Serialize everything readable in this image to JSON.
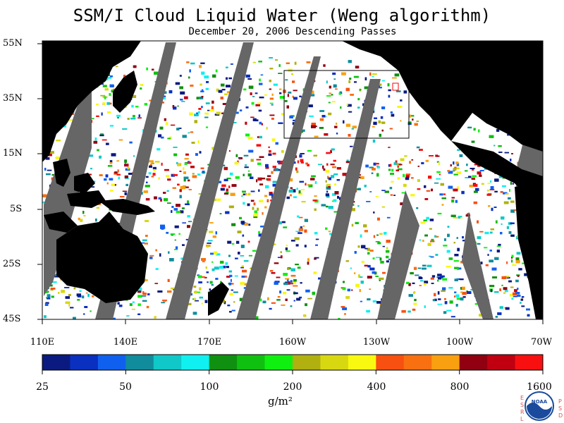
{
  "title": "SSM/I Cloud Liquid Water (Weng algorithm)",
  "subtitle": "December 20, 2006  Descending Passes",
  "lat_labels": [
    "55N",
    "35N",
    "15N",
    "5S",
    "25S",
    "45S"
  ],
  "lon_labels": [
    "110E",
    "140E",
    "170E",
    "160W",
    "130W",
    "100W",
    "70W"
  ],
  "colorbar": {
    "labels": [
      "25",
      "50",
      "100",
      "200",
      "400",
      "800",
      "1600"
    ],
    "unit": "g/m²",
    "colors": [
      "#0a1a80",
      "#0a30c0",
      "#1060f0",
      "#108c9c",
      "#10c8c8",
      "#10f0f0",
      "#109010",
      "#10c010",
      "#10f010",
      "#b0b010",
      "#d8d810",
      "#f8f810",
      "#f85010",
      "#f87010",
      "#f8a010",
      "#900010",
      "#c00010",
      "#f81010"
    ]
  },
  "logo": {
    "text": "NOAA",
    "left_letters": "ESRL",
    "right_letters": "PSD"
  },
  "colors": {
    "land": "#000000",
    "nodata": "#666666",
    "clear": "#ffffff",
    "box": "#000000"
  }
}
